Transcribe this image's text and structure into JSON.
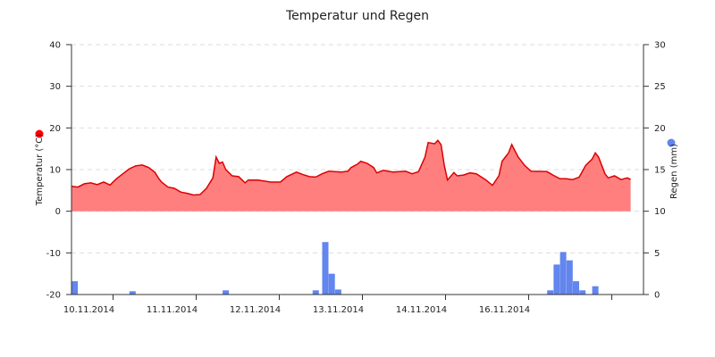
{
  "chart_data": {
    "type": "area",
    "title": "Temperatur und Regen",
    "x_axis": {
      "start": "2014-11-09T18:00",
      "end": "2014-11-17T04:00",
      "tick_labels": [
        "10.11.2014",
        "11.11.2014",
        "12.11.2014",
        "13.11.2014",
        "14.11.2014",
        "16.11.2014"
      ]
    },
    "y_left": {
      "label": "Temperatur (°C)",
      "min": -20,
      "max": 40,
      "ticks": [
        40,
        30,
        20,
        10,
        0,
        -10,
        -20
      ]
    },
    "y_right": {
      "label": "Regen (mm)",
      "min": 0,
      "max": 30,
      "ticks": [
        30,
        25,
        20,
        15,
        10,
        5,
        0
      ]
    },
    "grid": "horizontal-dashed",
    "colors": {
      "temp_line": "#dd0000",
      "temp_fill": "#ff7f7f",
      "rain_bar": "#6285ee",
      "grid": "#dddddd",
      "axis": "#333333"
    },
    "series": [
      {
        "kind": "temperature",
        "points": [
          [
            "2014-11-09T18:00",
            6.0
          ],
          [
            "2014-11-09T20:00",
            5.8
          ],
          [
            "2014-11-09T22:00",
            6.6
          ],
          [
            "2014-11-10T00:00",
            6.8
          ],
          [
            "2014-11-10T02:00",
            6.4
          ],
          [
            "2014-11-10T04:00",
            7.0
          ],
          [
            "2014-11-10T06:00",
            6.3
          ],
          [
            "2014-11-10T08:00",
            7.8
          ],
          [
            "2014-11-10T10:00",
            9.0
          ],
          [
            "2014-11-10T12:00",
            10.2
          ],
          [
            "2014-11-10T14:00",
            10.9
          ],
          [
            "2014-11-10T16:00",
            11.1
          ],
          [
            "2014-11-10T18:00",
            10.5
          ],
          [
            "2014-11-10T20:00",
            9.3
          ],
          [
            "2014-11-10T21:00",
            8.0
          ],
          [
            "2014-11-10T22:00",
            7.0
          ],
          [
            "2014-11-11T00:00",
            5.8
          ],
          [
            "2014-11-11T02:00",
            5.5
          ],
          [
            "2014-11-11T04:00",
            4.6
          ],
          [
            "2014-11-11T06:00",
            4.3
          ],
          [
            "2014-11-11T08:00",
            3.9
          ],
          [
            "2014-11-11T10:00",
            4.0
          ],
          [
            "2014-11-11T12:00",
            5.5
          ],
          [
            "2014-11-11T14:00",
            8.0
          ],
          [
            "2014-11-11T15:00",
            13.0
          ],
          [
            "2014-11-11T16:00",
            11.5
          ],
          [
            "2014-11-11T17:00",
            11.8
          ],
          [
            "2014-11-11T18:00",
            10.0
          ],
          [
            "2014-11-11T20:00",
            8.5
          ],
          [
            "2014-11-11T22:00",
            8.3
          ],
          [
            "2014-11-12T00:00",
            6.8
          ],
          [
            "2014-11-12T01:00",
            7.5
          ],
          [
            "2014-11-12T04:00",
            7.5
          ],
          [
            "2014-11-12T08:00",
            7.0
          ],
          [
            "2014-11-12T11:00",
            7.0
          ],
          [
            "2014-11-12T13:00",
            8.3
          ],
          [
            "2014-11-12T16:00",
            9.4
          ],
          [
            "2014-11-12T18:00",
            8.8
          ],
          [
            "2014-11-12T20:00",
            8.3
          ],
          [
            "2014-11-12T22:00",
            8.2
          ],
          [
            "2014-11-13T00:00",
            9.0
          ],
          [
            "2014-11-13T02:00",
            9.6
          ],
          [
            "2014-11-13T06:00",
            9.4
          ],
          [
            "2014-11-13T08:00",
            9.6
          ],
          [
            "2014-11-13T09:00",
            10.5
          ],
          [
            "2014-11-13T11:00",
            11.3
          ],
          [
            "2014-11-13T12:00",
            12.0
          ],
          [
            "2014-11-13T14:00",
            11.5
          ],
          [
            "2014-11-13T16:00",
            10.5
          ],
          [
            "2014-11-13T17:00",
            9.2
          ],
          [
            "2014-11-13T19:00",
            9.8
          ],
          [
            "2014-11-13T22:00",
            9.4
          ],
          [
            "2014-11-14T02:00",
            9.6
          ],
          [
            "2014-11-14T04:00",
            9.0
          ],
          [
            "2014-11-14T06:00",
            9.5
          ],
          [
            "2014-11-14T08:00",
            13.0
          ],
          [
            "2014-11-14T09:00",
            16.5
          ],
          [
            "2014-11-14T11:00",
            16.2
          ],
          [
            "2014-11-14T12:00",
            17.0
          ],
          [
            "2014-11-14T13:00",
            16.0
          ],
          [
            "2014-11-14T14:00",
            11.0
          ],
          [
            "2014-11-14T15:00",
            7.5
          ],
          [
            "2014-11-14T17:00",
            9.3
          ],
          [
            "2014-11-14T18:00",
            8.5
          ],
          [
            "2014-11-14T20:00",
            8.7
          ],
          [
            "2014-11-14T22:00",
            9.2
          ],
          [
            "2014-11-15T00:00",
            9.0
          ],
          [
            "2014-11-15T03:00",
            7.5
          ],
          [
            "2014-11-15T05:00",
            6.2
          ],
          [
            "2014-11-15T07:00",
            8.5
          ],
          [
            "2014-11-15T08:00",
            12.0
          ],
          [
            "2014-11-15T09:00",
            13.0
          ],
          [
            "2014-11-15T10:00",
            14.0
          ],
          [
            "2014-11-15T11:00",
            16.0
          ],
          [
            "2014-11-15T13:00",
            13.0
          ],
          [
            "2014-11-15T15:00",
            11.0
          ],
          [
            "2014-11-15T17:00",
            9.6
          ],
          [
            "2014-11-15T22:00",
            9.5
          ],
          [
            "2014-11-16T00:00",
            8.6
          ],
          [
            "2014-11-16T02:00",
            7.8
          ],
          [
            "2014-11-16T04:00",
            7.8
          ],
          [
            "2014-11-16T06:00",
            7.6
          ],
          [
            "2014-11-16T08:00",
            8.2
          ],
          [
            "2014-11-16T10:00",
            11.0
          ],
          [
            "2014-11-16T12:00",
            12.5
          ],
          [
            "2014-11-16T13:00",
            14.0
          ],
          [
            "2014-11-16T14:00",
            13.0
          ],
          [
            "2014-11-16T16:00",
            9.0
          ],
          [
            "2014-11-16T17:00",
            8.0
          ],
          [
            "2014-11-16T19:00",
            8.5
          ],
          [
            "2014-11-16T21:00",
            7.6
          ],
          [
            "2014-11-16T23:00",
            8.0
          ],
          [
            "2014-11-17T00:00",
            7.6
          ]
        ]
      },
      {
        "kind": "rain",
        "bars": [
          [
            "2014-11-09T19:00",
            1.6
          ],
          [
            "2014-11-10T13:00",
            0.4
          ],
          [
            "2014-11-11T18:00",
            0.5
          ],
          [
            "2014-11-12T22:00",
            0.5
          ],
          [
            "2014-11-13T01:00",
            6.3
          ],
          [
            "2014-11-13T03:00",
            2.5
          ],
          [
            "2014-11-13T05:00",
            0.6
          ],
          [
            "2014-11-15T23:00",
            0.5
          ],
          [
            "2014-11-16T01:00",
            3.6
          ],
          [
            "2014-11-16T03:00",
            5.1
          ],
          [
            "2014-11-16T05:00",
            4.1
          ],
          [
            "2014-11-16T07:00",
            1.6
          ],
          [
            "2014-11-16T09:00",
            0.5
          ],
          [
            "2014-11-16T13:00",
            1.0
          ]
        ]
      }
    ]
  }
}
